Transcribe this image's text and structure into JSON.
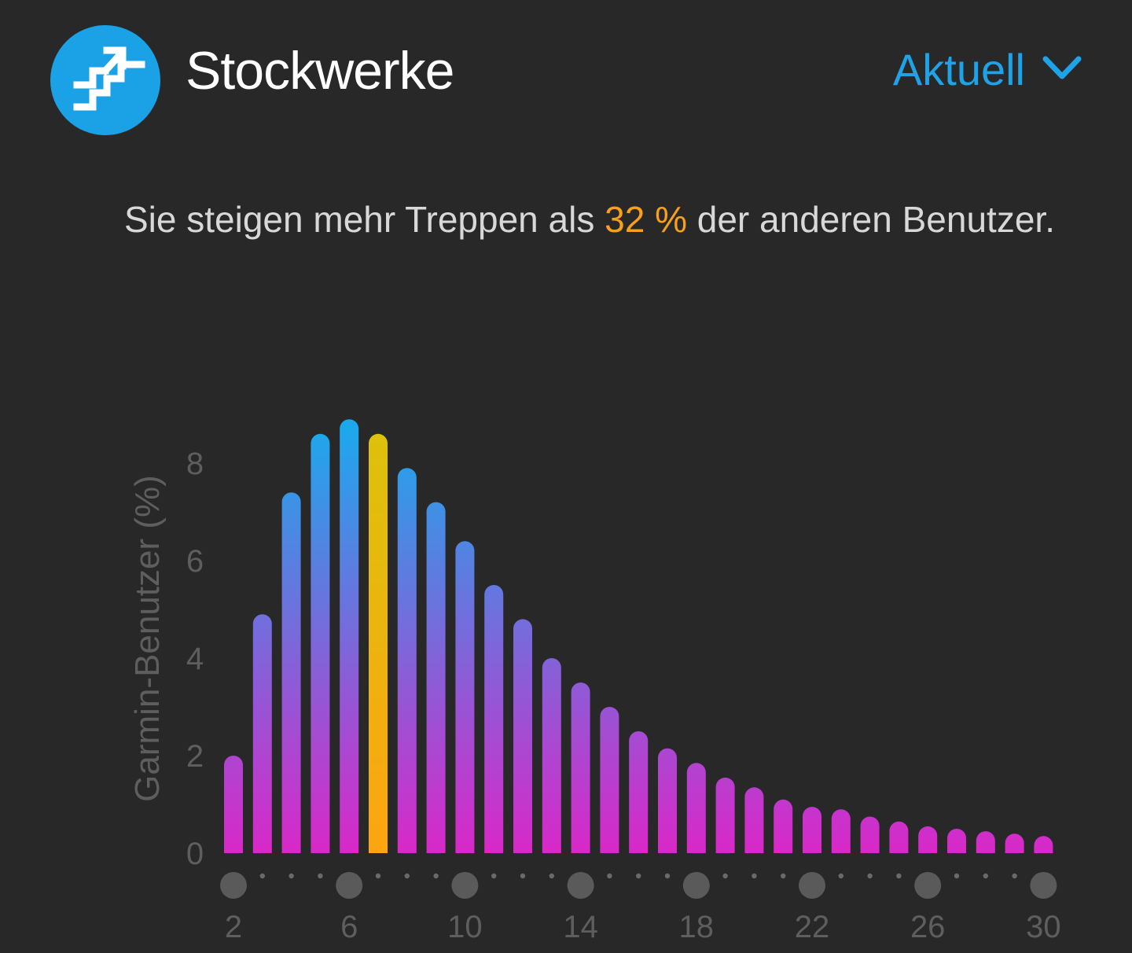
{
  "header": {
    "title": "Stockwerke",
    "icon": "stairs-icon",
    "period_label": "Aktuell",
    "period_icon": "chevron-down-icon"
  },
  "summary": {
    "prefix": "Sie steigen mehr Treppen als",
    "percent": "32 %",
    "suffix": "der anderen Benutzer."
  },
  "colors": {
    "background": "#282828",
    "accent": "#1ba1e6",
    "highlight": "#f8a01b",
    "bar_top": "#1ba9ec",
    "bar_bottom": "#d928c8",
    "highlight_top": "#dcc20c",
    "highlight_bottom": "#fca510",
    "axis_text": "#5e5e5e",
    "dot": "#5a5a5a"
  },
  "chart_data": {
    "type": "bar",
    "ylabel": "Garmin-Benutzer (%)",
    "ylim": [
      0,
      9
    ],
    "yticks": [
      0,
      2,
      4,
      6,
      8
    ],
    "x": [
      2,
      3,
      4,
      5,
      6,
      7,
      8,
      9,
      10,
      11,
      12,
      13,
      14,
      15,
      16,
      17,
      18,
      19,
      20,
      21,
      22,
      23,
      24,
      25,
      26,
      27,
      28,
      29,
      30
    ],
    "values": [
      2.0,
      4.9,
      7.4,
      8.6,
      8.9,
      8.6,
      7.9,
      7.2,
      6.4,
      5.5,
      4.8,
      4.0,
      3.5,
      3.0,
      2.5,
      2.15,
      1.85,
      1.55,
      1.35,
      1.1,
      0.95,
      0.9,
      0.75,
      0.65,
      0.55,
      0.5,
      0.45,
      0.4,
      0.35
    ],
    "xticks": [
      2,
      6,
      10,
      14,
      18,
      22,
      26,
      30
    ],
    "highlight_x": 7,
    "grid": false,
    "legend": "none"
  }
}
